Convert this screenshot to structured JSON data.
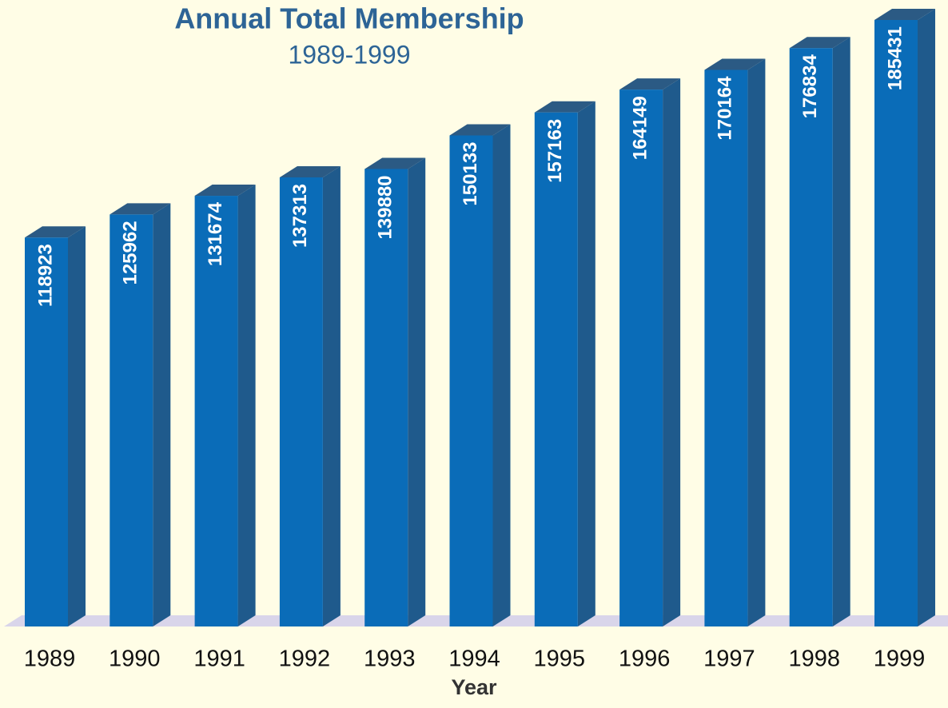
{
  "chart_data": {
    "type": "bar3d",
    "title": "Annual Total Membership",
    "subtitle": "1989-1999",
    "x_label": "Year",
    "categories": [
      "1989",
      "1990",
      "1991",
      "1992",
      "1993",
      "1994",
      "1995",
      "1996",
      "1997",
      "1998",
      "1999"
    ],
    "values": [
      118923,
      125962,
      131674,
      137313,
      139880,
      150133,
      157163,
      164149,
      170164,
      176834,
      185431
    ],
    "color": "#0a6cb8"
  }
}
